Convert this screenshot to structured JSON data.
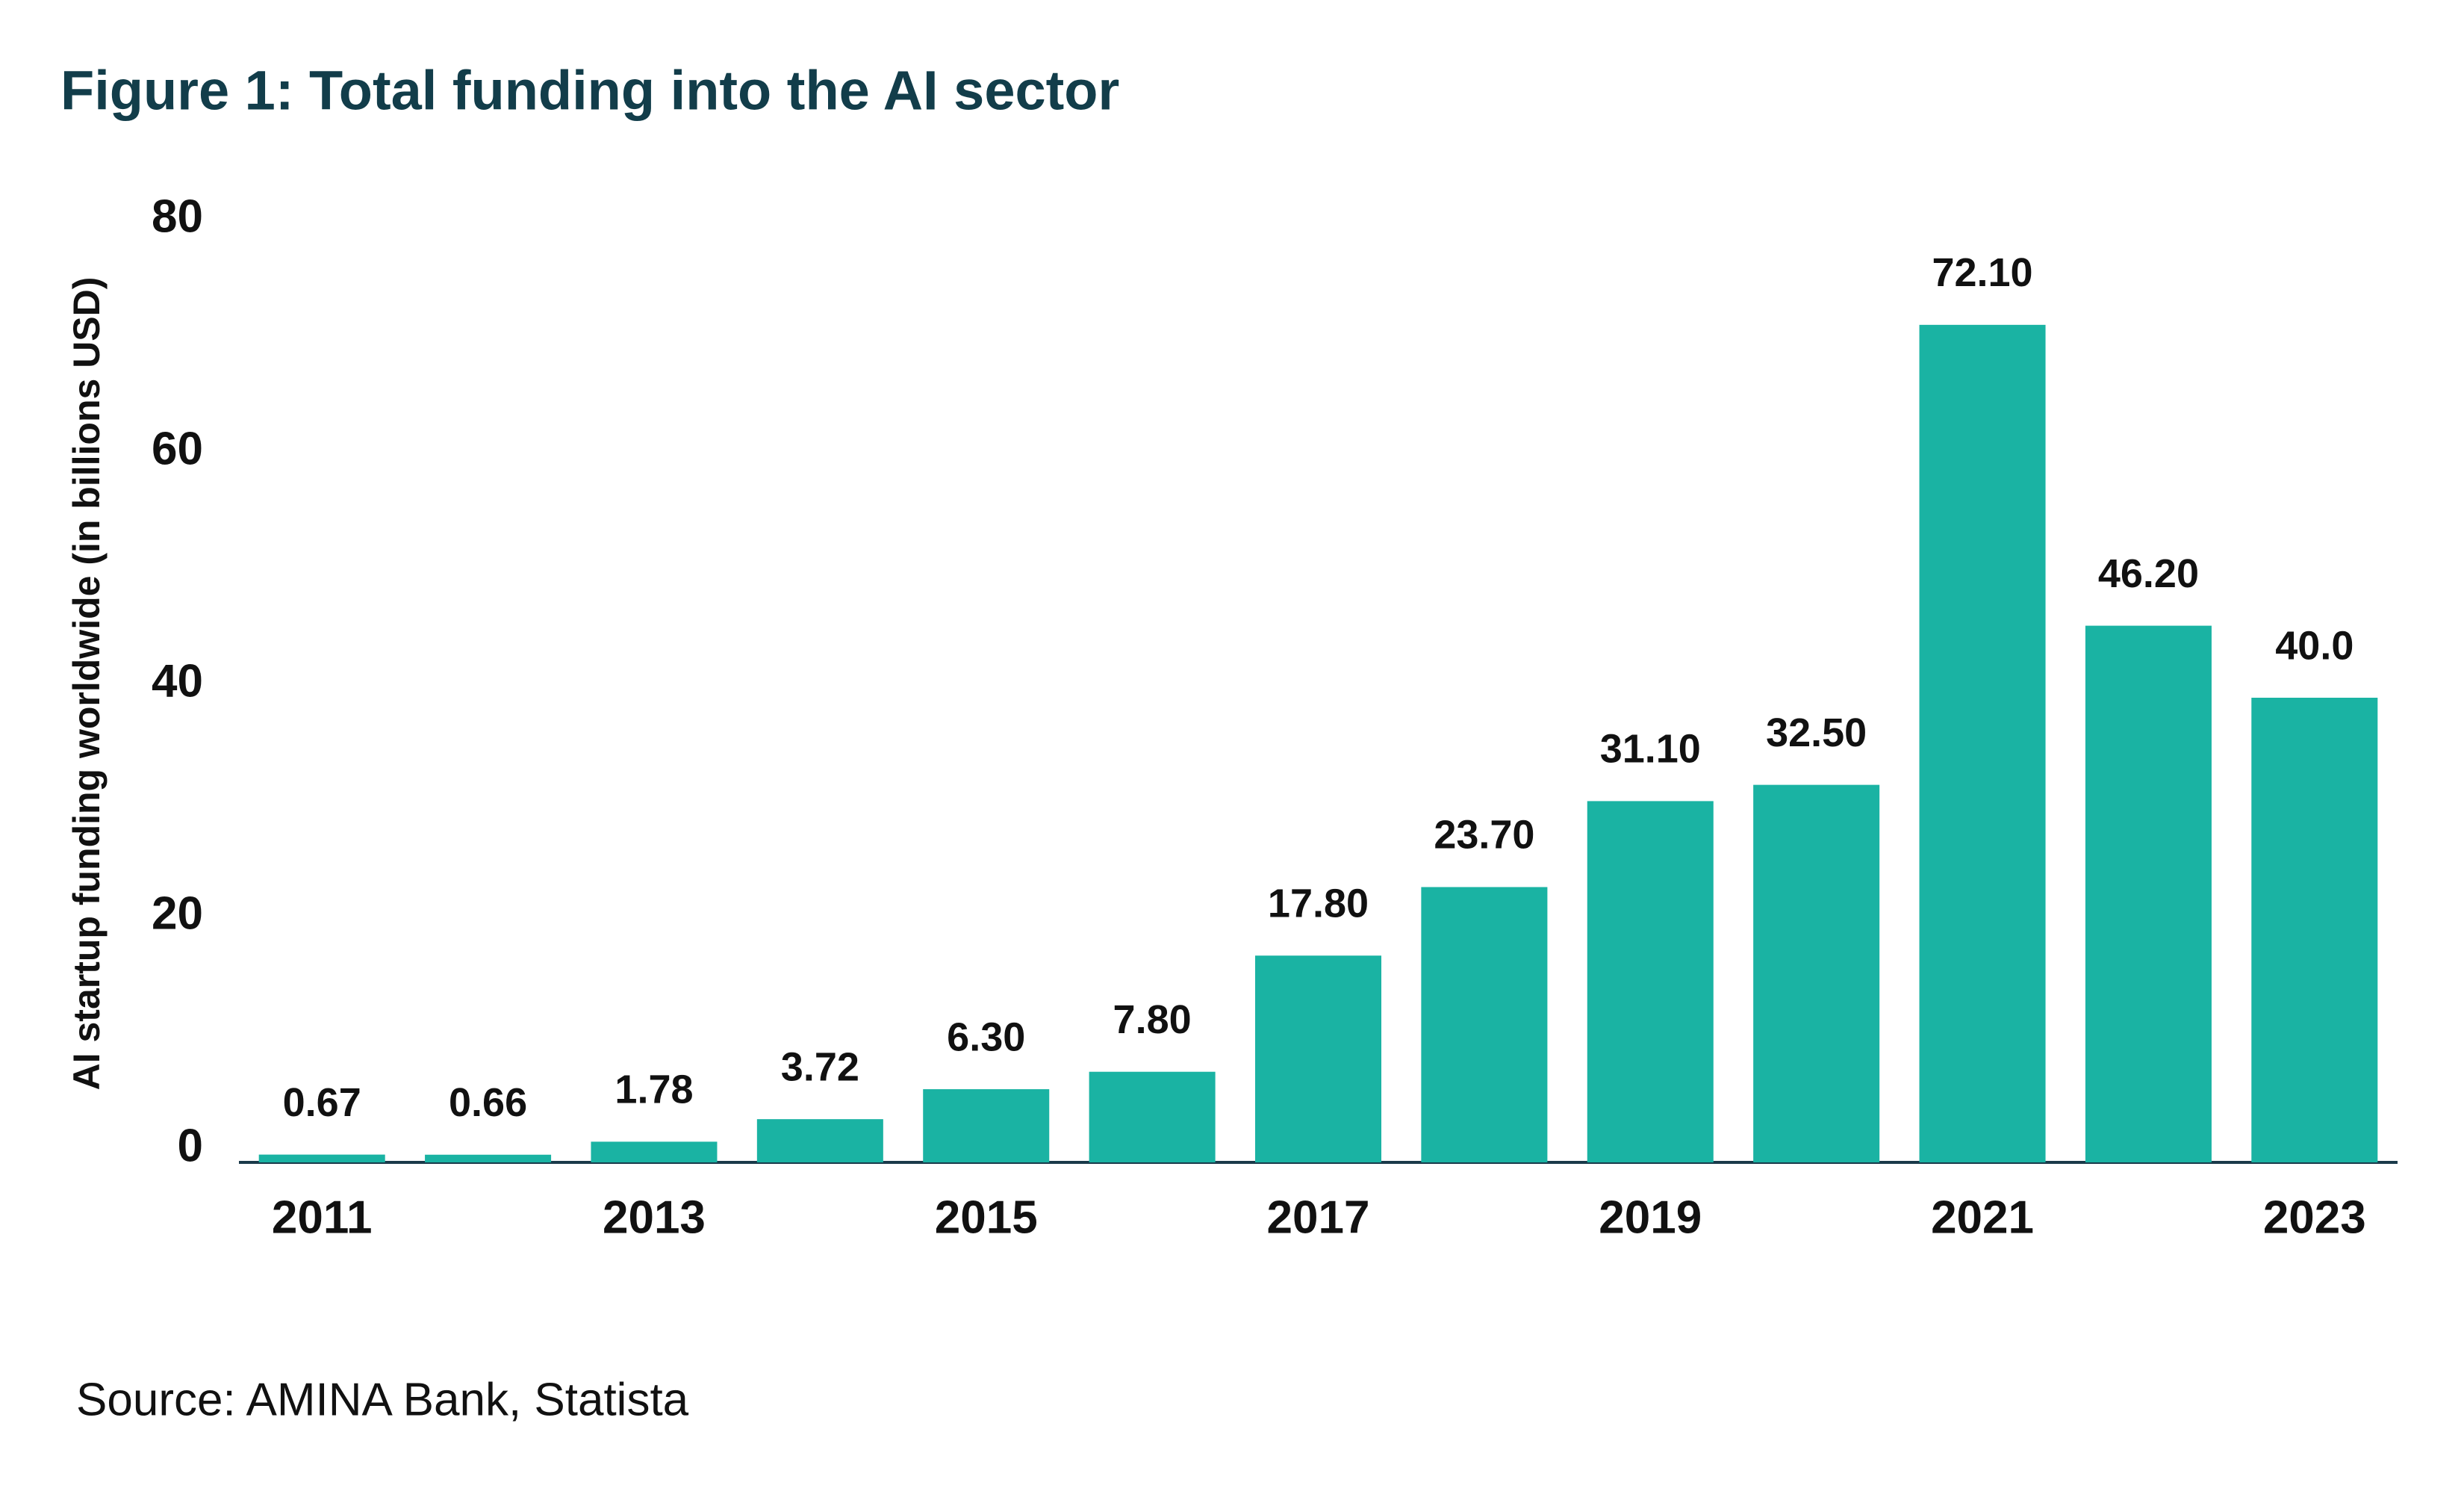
{
  "chart_data": {
    "type": "bar",
    "title": "Figure 1: Total funding into the AI sector",
    "y_axis_label": "AI startup funding worldwide (in billions USD)",
    "source": "Source: AMINA Bank, Statista",
    "categories": [
      "2011",
      null,
      "2013",
      null,
      "2015",
      null,
      "2017",
      null,
      "2019",
      null,
      "2021",
      null,
      "2023"
    ],
    "values": [
      0.67,
      0.66,
      1.78,
      3.72,
      6.3,
      7.8,
      17.8,
      23.7,
      31.1,
      32.5,
      72.1,
      46.2,
      40
    ],
    "value_labels": [
      "0.67",
      "0.66",
      "1.78",
      "3.72",
      "6.30",
      "7.80",
      "17.80",
      "23.70",
      "31.10",
      "32.50",
      "72.10",
      "46.20",
      "40.0"
    ],
    "color": "#1ab3a3",
    "ylim": [
      0,
      80
    ],
    "yticks": [
      0,
      20,
      40,
      60,
      80
    ],
    "grid": false
  }
}
